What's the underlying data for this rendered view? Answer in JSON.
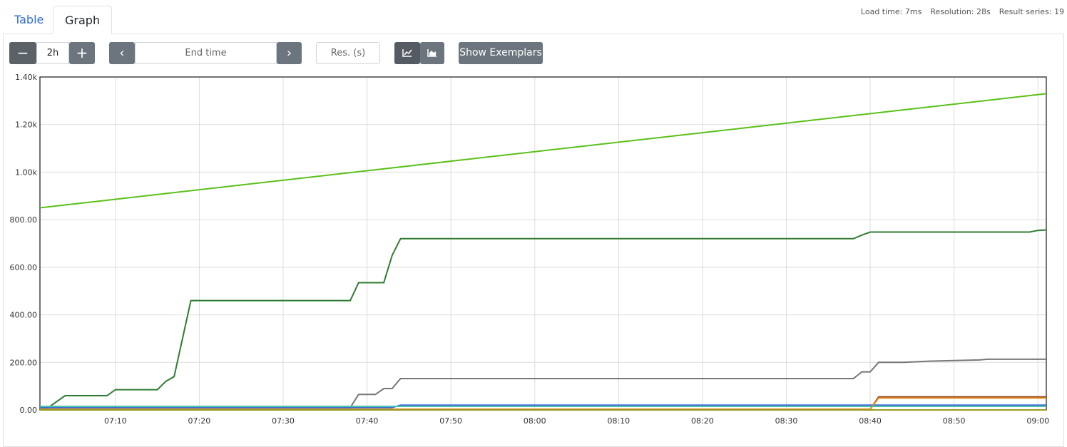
{
  "tabs": [
    "Table",
    "Graph"
  ],
  "stats": [
    "Load time: 7ms",
    "Resolution: 28s",
    "Result series: 19"
  ],
  "controls": {
    "range": "2h",
    "end_time": "End time",
    "resolution": "Res. (s)",
    "exemplars": "Show Exemplars"
  },
  "chart_data": {
    "type": "line",
    "xlim": [
      "07:01",
      "09:01"
    ],
    "xticks": [
      "07:10",
      "07:20",
      "07:30",
      "07:40",
      "07:50",
      "08:00",
      "08:10",
      "08:20",
      "08:30",
      "08:40",
      "08:50",
      "09:00"
    ],
    "ylim": [
      0,
      1400
    ],
    "yticks": [
      {
        "value": 0,
        "label": "0.00"
      },
      {
        "value": 200,
        "label": "200.00"
      },
      {
        "value": 400,
        "label": "400.00"
      },
      {
        "value": 600,
        "label": "600.00"
      },
      {
        "value": 800,
        "label": "800.00"
      },
      {
        "value": 1000,
        "label": "1.00k"
      },
      {
        "value": 1200,
        "label": "1.20k"
      },
      {
        "value": 1400,
        "label": "1.40k"
      }
    ],
    "grid": true,
    "series": [
      {
        "color": "#5ac018",
        "x": [
          "07:01",
          "09:01"
        ],
        "values": [
          850,
          1330
        ]
      },
      {
        "color": "#2e7d32",
        "x": [
          "07:01",
          "07:02",
          "07:03",
          "07:04",
          "07:09",
          "07:10",
          "07:15",
          "07:16",
          "07:17",
          "07:18",
          "07:19",
          "07:38",
          "07:39",
          "07:42",
          "07:43",
          "07:44",
          "08:38",
          "08:39",
          "08:40",
          "08:59",
          "09:00",
          "09:01"
        ],
        "values": [
          10,
          10,
          35,
          60,
          60,
          85,
          85,
          120,
          140,
          300,
          460,
          460,
          535,
          535,
          650,
          720,
          720,
          735,
          748,
          748,
          755,
          757
        ]
      },
      {
        "color": "#777777",
        "x": [
          "07:01",
          "07:38",
          "07:39",
          "07:41",
          "07:42",
          "07:43",
          "07:44",
          "08:38",
          "08:39",
          "08:40",
          "08:41",
          "08:44",
          "08:47",
          "08:53",
          "08:54",
          "09:01"
        ],
        "values": [
          10,
          10,
          65,
          65,
          90,
          90,
          132,
          132,
          160,
          160,
          200,
          200,
          205,
          210,
          213,
          213
        ]
      },
      {
        "color": "#3a6fd8",
        "x": [
          "07:01",
          "07:43",
          "07:44",
          "09:01"
        ],
        "values": [
          10,
          10,
          20,
          20
        ]
      },
      {
        "color": "#8b3a1e",
        "x": [
          "07:01",
          "08:40",
          "08:41",
          "09:01"
        ],
        "values": [
          2,
          2,
          55,
          55
        ]
      },
      {
        "color": "#e08a1a",
        "x": [
          "07:01",
          "08:40",
          "08:41",
          "09:01"
        ],
        "values": [
          3,
          3,
          50,
          50
        ]
      },
      {
        "color": "#4dc0a8",
        "x": [
          "07:01",
          "09:01"
        ],
        "values": [
          15,
          15
        ]
      },
      {
        "color": "#9a9a20",
        "x": [
          "07:01",
          "09:01"
        ],
        "values": [
          0,
          0
        ]
      }
    ]
  }
}
